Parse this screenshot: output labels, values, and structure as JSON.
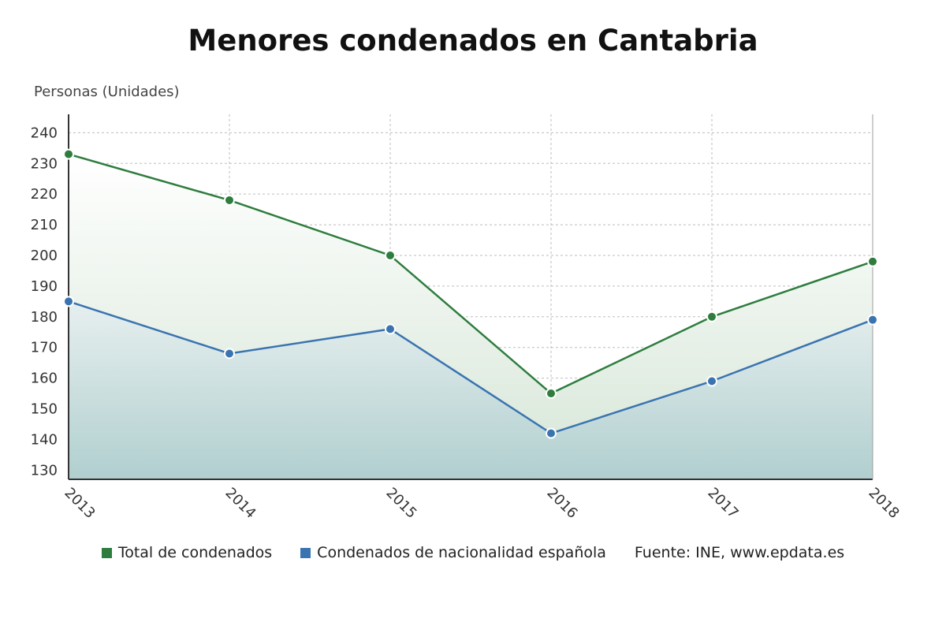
{
  "chart_data": {
    "type": "area",
    "title": "Menores condenados en Cantabria",
    "ylabel": "Personas (Unidades)",
    "xlabel": "",
    "categories": [
      "2013",
      "2014",
      "2015",
      "2016",
      "2017",
      "2018"
    ],
    "ylim": [
      127,
      246
    ],
    "yticks": [
      130,
      140,
      150,
      160,
      170,
      180,
      190,
      200,
      210,
      220,
      230,
      240
    ],
    "grid": true,
    "legend_position": "bottom",
    "series": [
      {
        "name": "Total de condenados",
        "color": "#2e7d3e",
        "values": [
          233,
          218,
          200,
          155,
          180,
          198
        ]
      },
      {
        "name": "Condenados de nacionalidad española",
        "color": "#3a74b0",
        "values": [
          185,
          168,
          176,
          142,
          159,
          179
        ]
      }
    ],
    "source": "Fuente: INE, www.epdata.es"
  }
}
